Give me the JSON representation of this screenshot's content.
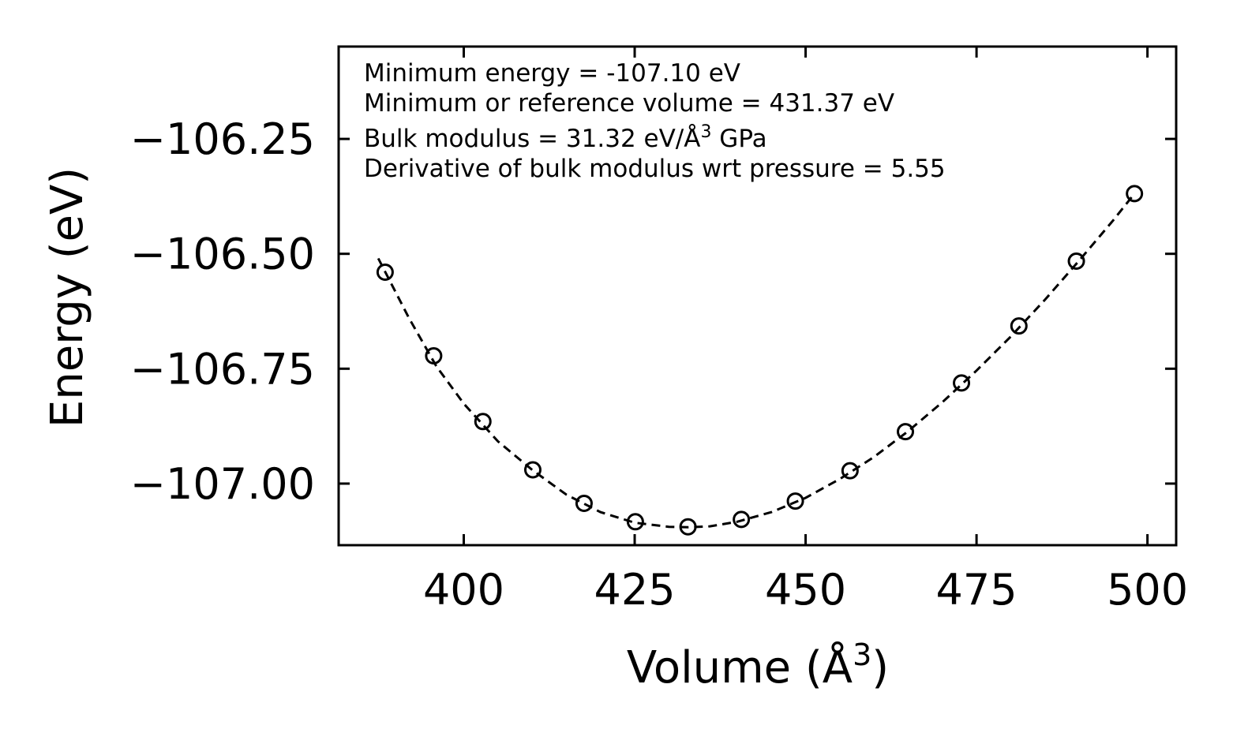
{
  "chart_data": {
    "type": "scatter",
    "title": "",
    "xlabel": "Volume (Å",
    "xlabel_sup": "3",
    "xlabel_close": ")",
    "ylabel": "Energy (eV)",
    "xlim": [
      381.7,
      504.2
    ],
    "ylim": [
      -107.134,
      -106.049
    ],
    "xticks": [
      400,
      425,
      450,
      475,
      500
    ],
    "xtick_labels": [
      "400",
      "425",
      "450",
      "475",
      "500"
    ],
    "yticks": [
      -106.25,
      -106.5,
      -106.75,
      -107.0
    ],
    "ytick_labels": [
      "−106.25",
      "−106.50",
      "−106.75",
      "−107.00"
    ],
    "grid": false,
    "legend": "none",
    "series": [
      {
        "name": "data",
        "marker": "open-circle",
        "x": [
          388.5,
          395.6,
          402.8,
          410.1,
          417.6,
          425.1,
          432.8,
          440.6,
          448.5,
          456.5,
          464.6,
          472.8,
          481.2,
          489.6,
          498.1
        ],
        "y": [
          -106.54,
          -106.722,
          -106.865,
          -106.97,
          -107.043,
          -107.083,
          -107.094,
          -107.078,
          -107.038,
          -106.972,
          -106.887,
          -106.781,
          -106.657,
          -106.516,
          -106.369
        ]
      },
      {
        "name": "fit",
        "style": "dashed",
        "x": [
          387.5,
          392,
          396,
          400,
          405,
          410,
          415,
          420,
          425,
          430,
          432.8,
          436,
          440,
          445,
          450,
          455,
          460,
          465,
          470,
          475,
          480,
          485,
          490,
          495,
          498.1
        ],
        "y": [
          -106.51,
          -106.64,
          -106.745,
          -106.826,
          -106.908,
          -106.97,
          -107.024,
          -107.062,
          -107.085,
          -107.094,
          -107.095,
          -107.093,
          -107.083,
          -107.062,
          -107.031,
          -106.99,
          -106.942,
          -106.886,
          -106.823,
          -106.754,
          -106.68,
          -106.6,
          -106.515,
          -106.427,
          -106.369
        ]
      }
    ],
    "annotations": [
      {
        "text": "Minimum energy = -107.10 eV"
      },
      {
        "text": "Minimum or reference volume = 431.37 eV"
      },
      {
        "text": "Bulk modulus = 31.32 eV/Å",
        "sup": "3",
        "suffix": " GPa"
      },
      {
        "text": "Derivative of bulk modulus wrt pressure = 5.55"
      }
    ]
  }
}
